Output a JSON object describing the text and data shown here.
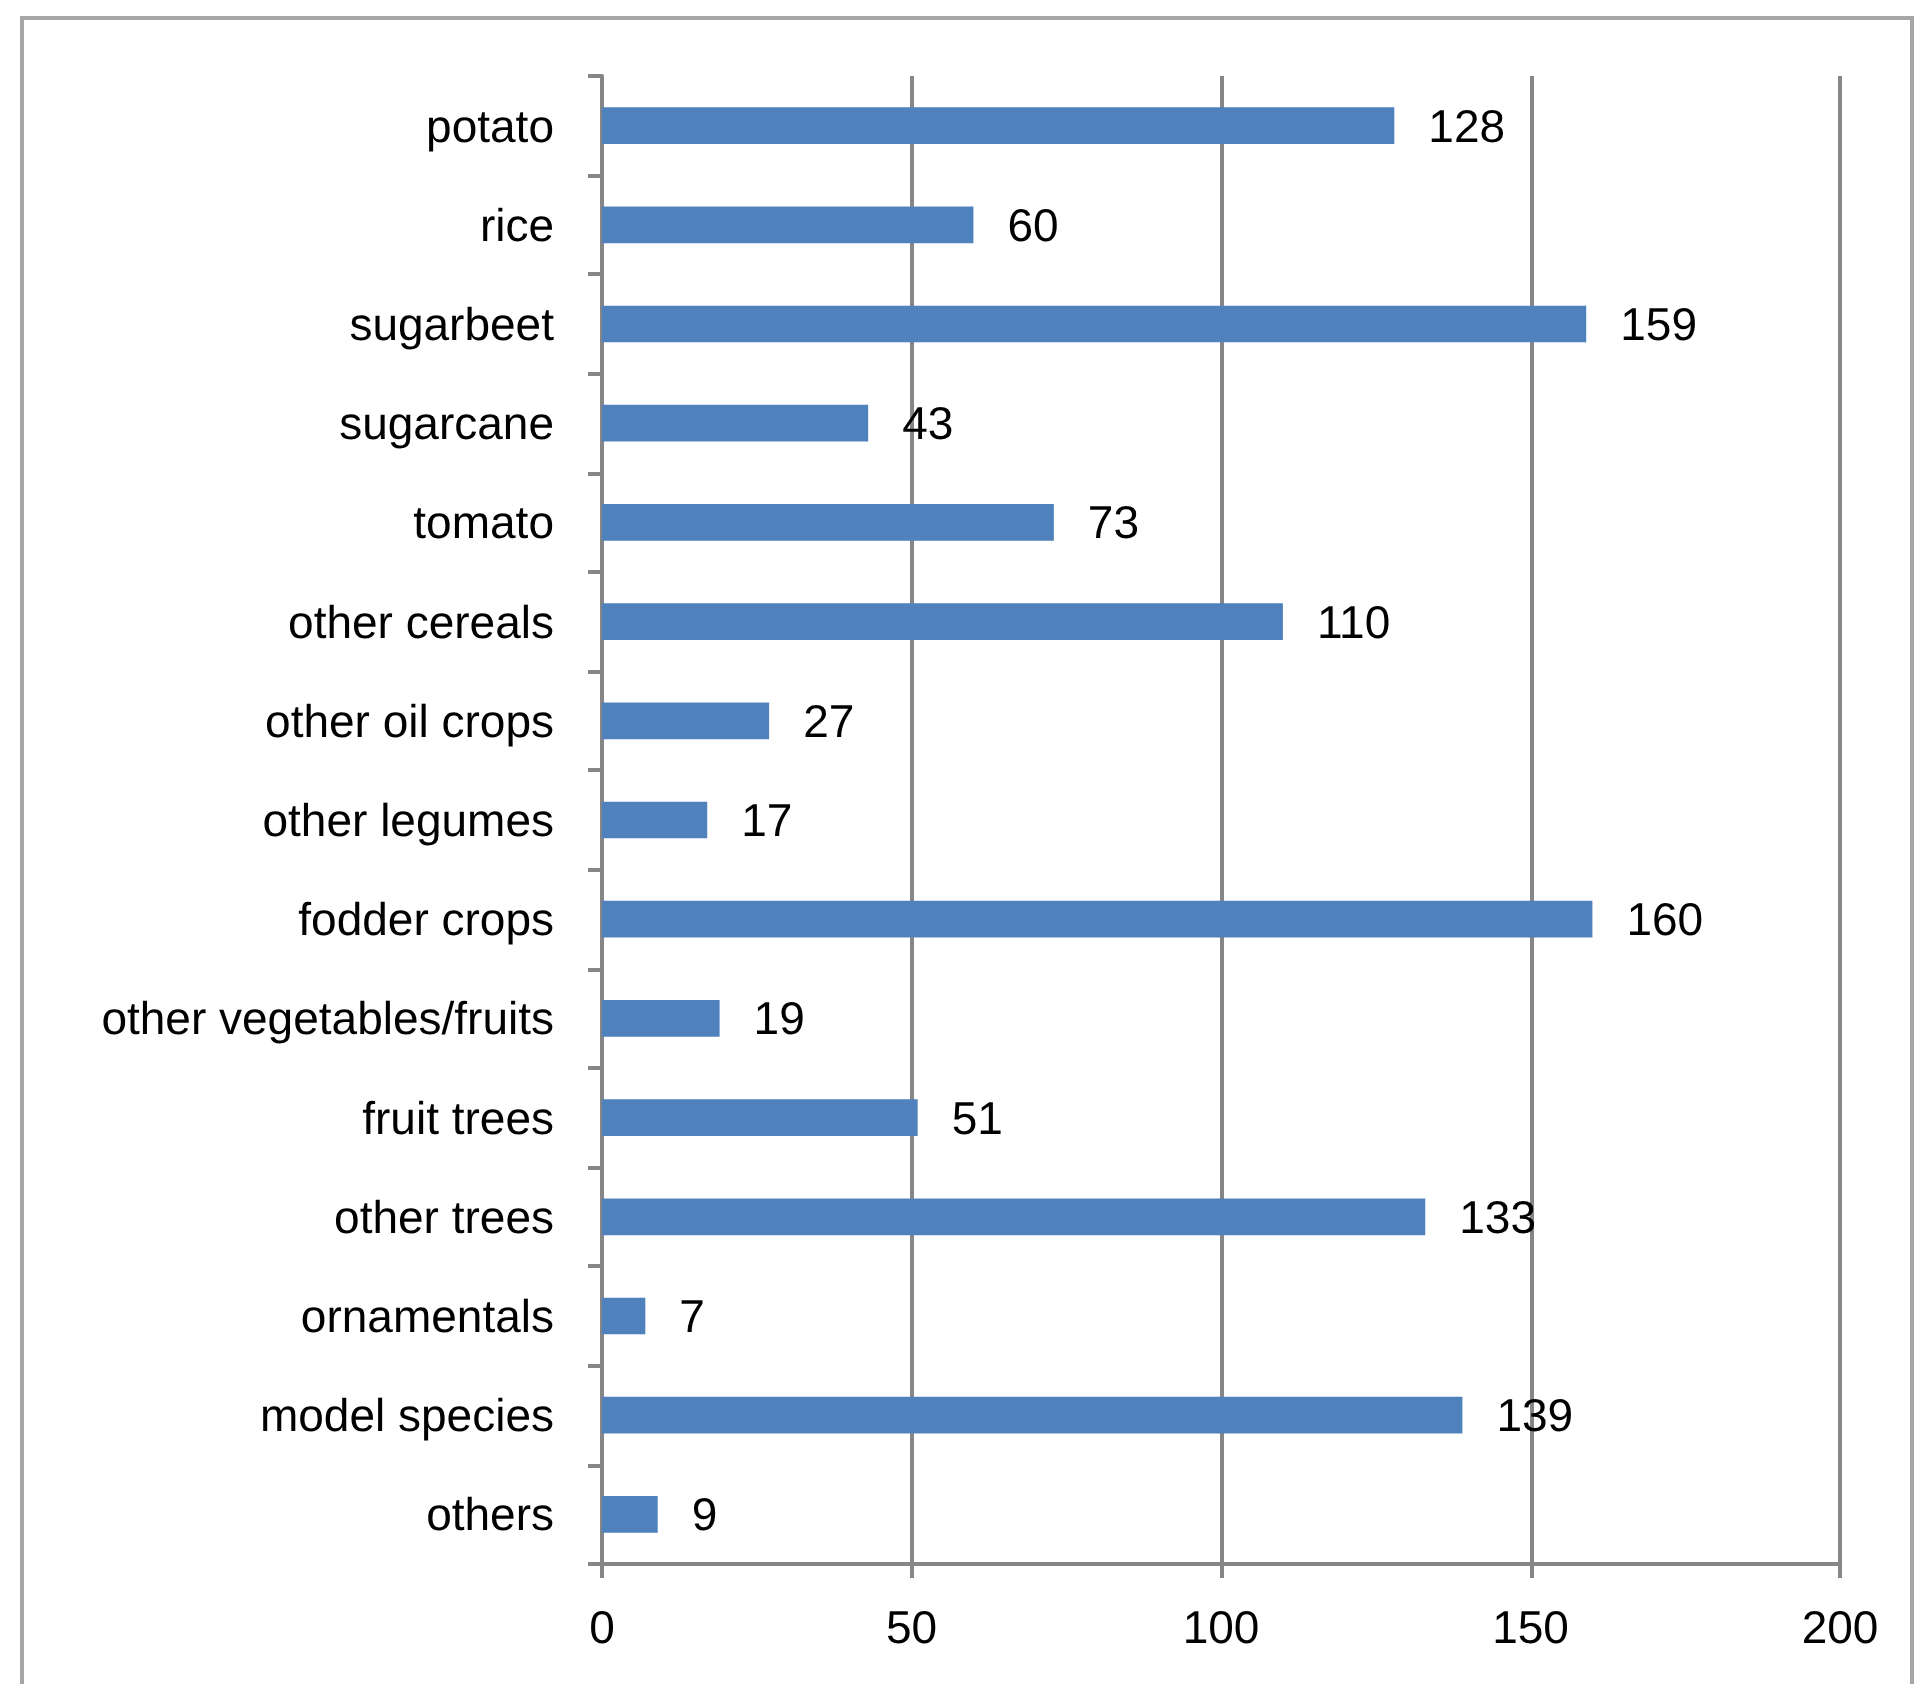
{
  "chart_data": {
    "type": "bar",
    "orientation": "horizontal",
    "categories": [
      "potato",
      "rice",
      "sugarbeet",
      "sugarcane",
      "tomato",
      "other cereals",
      "other oil crops",
      "other legumes",
      "fodder crops",
      "other vegetables/fruits",
      "fruit trees",
      "other trees",
      "ornamentals",
      "model species",
      "others"
    ],
    "values": [
      128,
      60,
      159,
      43,
      73,
      110,
      27,
      17,
      160,
      19,
      51,
      133,
      7,
      139,
      9
    ],
    "color": "#4f81bd",
    "xlim": [
      0,
      200
    ],
    "xticks": [
      0,
      50,
      100,
      150,
      200
    ],
    "grid": "x",
    "data_labels": true
  }
}
